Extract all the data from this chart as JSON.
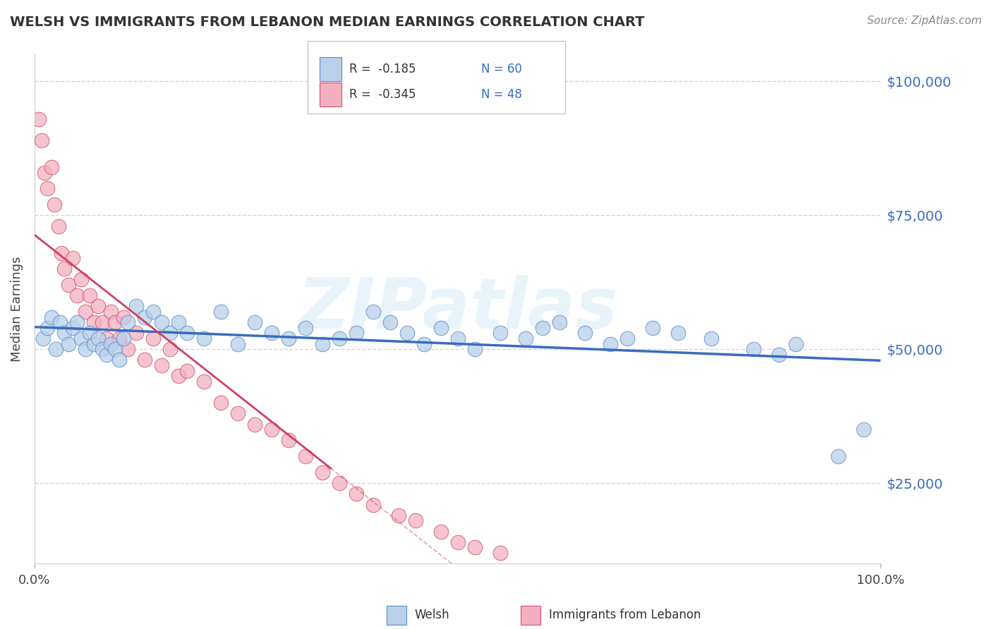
{
  "title": "WELSH VS IMMIGRANTS FROM LEBANON MEDIAN EARNINGS CORRELATION CHART",
  "source_text": "Source: ZipAtlas.com",
  "ylabel": "Median Earnings",
  "xlim": [
    0.0,
    100.0
  ],
  "ylim": [
    10000,
    105000
  ],
  "yticks": [
    25000,
    50000,
    75000,
    100000
  ],
  "ytick_labels": [
    "$25,000",
    "$50,000",
    "$75,000",
    "$100,000"
  ],
  "xtick_labels": [
    "0.0%",
    "100.0%"
  ],
  "welsh_fill_color": "#b8d0ea",
  "welsh_edge_color": "#5b8cc8",
  "lebanon_fill_color": "#f4b0c0",
  "lebanon_edge_color": "#d05070",
  "welsh_line_color": "#3a6bbf",
  "lebanon_line_color": "#d04060",
  "legend_R1": "R =  -0.185",
  "legend_N1": "N = 60",
  "legend_R2": "R =  -0.345",
  "legend_N2": "N = 48",
  "watermark": "ZIPatlas",
  "title_color": "#333333",
  "source_color": "#888888",
  "grid_color": "#d0d0d0",
  "welsh_x": [
    1.0,
    1.5,
    2.0,
    2.5,
    3.0,
    3.5,
    4.0,
    4.5,
    5.0,
    5.5,
    6.0,
    6.5,
    7.0,
    7.5,
    8.0,
    8.5,
    9.0,
    9.5,
    10.0,
    10.5,
    11.0,
    12.0,
    13.0,
    14.0,
    15.0,
    16.0,
    17.0,
    18.0,
    20.0,
    22.0,
    24.0,
    26.0,
    28.0,
    30.0,
    32.0,
    34.0,
    36.0,
    38.0,
    40.0,
    42.0,
    44.0,
    46.0,
    48.0,
    50.0,
    52.0,
    55.0,
    58.0,
    60.0,
    62.0,
    65.0,
    68.0,
    70.0,
    73.0,
    76.0,
    80.0,
    85.0,
    88.0,
    90.0,
    95.0,
    98.0
  ],
  "welsh_y": [
    52000,
    54000,
    56000,
    50000,
    55000,
    53000,
    51000,
    54000,
    55000,
    52000,
    50000,
    53000,
    51000,
    52000,
    50000,
    49000,
    51000,
    50000,
    48000,
    52000,
    55000,
    58000,
    56000,
    57000,
    55000,
    53000,
    55000,
    53000,
    52000,
    57000,
    51000,
    55000,
    53000,
    52000,
    54000,
    51000,
    52000,
    53000,
    57000,
    55000,
    53000,
    51000,
    54000,
    52000,
    50000,
    53000,
    52000,
    54000,
    55000,
    53000,
    51000,
    52000,
    54000,
    53000,
    52000,
    50000,
    49000,
    51000,
    30000,
    35000
  ],
  "lebanon_x": [
    0.5,
    0.8,
    1.2,
    1.5,
    2.0,
    2.3,
    2.8,
    3.2,
    3.5,
    4.0,
    4.5,
    5.0,
    5.5,
    6.0,
    6.5,
    7.0,
    7.5,
    8.0,
    8.5,
    9.0,
    9.5,
    10.0,
    10.5,
    11.0,
    12.0,
    13.0,
    14.0,
    15.0,
    16.0,
    17.0,
    18.0,
    20.0,
    22.0,
    24.0,
    26.0,
    28.0,
    30.0,
    32.0,
    34.0,
    36.0,
    38.0,
    40.0,
    43.0,
    45.0,
    48.0,
    50.0,
    52.0,
    55.0
  ],
  "lebanon_y": [
    93000,
    89000,
    83000,
    80000,
    84000,
    77000,
    73000,
    68000,
    65000,
    62000,
    67000,
    60000,
    63000,
    57000,
    60000,
    55000,
    58000,
    55000,
    52000,
    57000,
    55000,
    52000,
    56000,
    50000,
    53000,
    48000,
    52000,
    47000,
    50000,
    45000,
    46000,
    44000,
    40000,
    38000,
    36000,
    35000,
    33000,
    30000,
    27000,
    25000,
    23000,
    21000,
    19000,
    18000,
    16000,
    14000,
    13000,
    12000
  ]
}
